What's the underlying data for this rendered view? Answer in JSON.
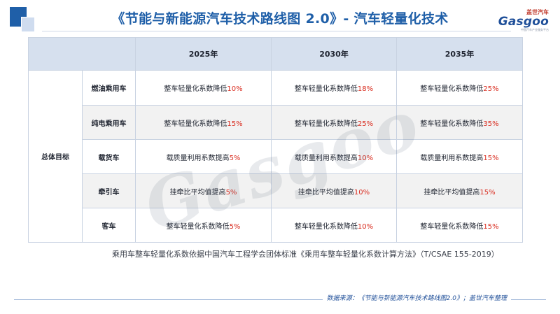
{
  "header": {
    "title": "《节能与新能源汽车技术路线图 2.0》- 汽车轻量化技术"
  },
  "brand": {
    "cn": "盖世汽车",
    "en": "Gasgoo",
    "sub": "中国汽车产业服务平台",
    "watermark": "Gasgoo"
  },
  "table": {
    "years": [
      "2025年",
      "2030年",
      "2035年"
    ],
    "group_label": "总体目标",
    "rows": [
      {
        "type": "燃油乘用车",
        "cells": [
          {
            "text": "整车轻量化系数降低",
            "value": "10%"
          },
          {
            "text": "整车轻量化系数降低",
            "value": "18%"
          },
          {
            "text": "整车轻量化系数降低",
            "value": "25%"
          }
        ]
      },
      {
        "type": "纯电乘用车",
        "cells": [
          {
            "text": "整车轻量化系数降低",
            "value": "15%"
          },
          {
            "text": "整车轻量化系数降低",
            "value": "25%"
          },
          {
            "text": "整车轻量化系数降低",
            "value": "35%"
          }
        ]
      },
      {
        "type": "载货车",
        "cells": [
          {
            "text": "载质量利用系数提高",
            "value": "5%"
          },
          {
            "text": "载质量利用系数提高",
            "value": "10%"
          },
          {
            "text": "载质量利用系数提高",
            "value": "15%"
          }
        ]
      },
      {
        "type": "牵引车",
        "cells": [
          {
            "text": "挂牵比平均值提高",
            "value": "5%"
          },
          {
            "text": "挂牵比平均值提高",
            "value": "10%"
          },
          {
            "text": "挂牵比平均值提高",
            "value": "15%"
          }
        ]
      },
      {
        "type": "客车",
        "cells": [
          {
            "text": "整车轻量化系数降低",
            "value": "5%"
          },
          {
            "text": "整车轻量化系数降低",
            "value": "10%"
          },
          {
            "text": "整车轻量化系数降低",
            "value": "15%"
          }
        ]
      }
    ]
  },
  "note": "乘用车整车轻量化系数依据中国汽车工程学会团体标准《乘用车整车轻量化系数计算方法》（T/CSAE 155-2019）",
  "footer": {
    "source": "数据来源：《节能与新能源汽车技术路线图2.0》；盖世汽车整理"
  },
  "colors": {
    "accent": "#1f5fa8",
    "highlight": "#d92d20",
    "header_bg": "#d6e0ee"
  }
}
